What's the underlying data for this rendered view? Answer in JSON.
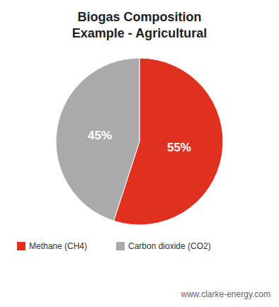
{
  "chart_data": {
    "type": "pie",
    "title": "Biogas Composition\nExample - Agricultural",
    "categories": [
      "Methane (CH4)",
      "Carbon dioxide (CO2)"
    ],
    "values": [
      55,
      45
    ],
    "value_labels": [
      "55%",
      "45%"
    ],
    "colors": [
      "#e03020",
      "#aaaaaa"
    ],
    "data_labels": true,
    "legend": "bottom",
    "annotations": [
      "www.clarke-energy.com"
    ]
  }
}
